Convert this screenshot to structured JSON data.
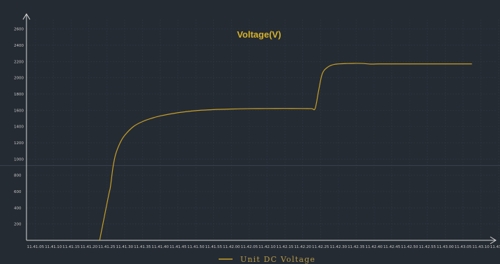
{
  "colors": {
    "background": "#252b33",
    "line": "#c9a227",
    "title": "#d6b22a",
    "legend": "#b59a45",
    "axis": "#d8d8d8",
    "grid": "#313844",
    "tick_label": "#c8c8c8",
    "reference_line": "#3a414c"
  },
  "chart_data": {
    "type": "line",
    "title": "Voltage(V)",
    "xlabel": "",
    "ylabel": "",
    "x_ticks": [
      "11.41.05",
      "11.41.10",
      "11.41.15",
      "11.41.20",
      "11.41.25",
      "11.41.30",
      "11.41.35",
      "11.41.40",
      "11.41.45",
      "11.41.50",
      "11.41.55",
      "11.42.00",
      "11.42.05",
      "11.42.10",
      "11.42.15",
      "11.42.20",
      "11.42.25",
      "11.42.30",
      "11.42.35",
      "11.42.40",
      "11.42.45",
      "11.42.50",
      "11.42.55",
      "11.43.00",
      "11.43.05",
      "11.43.10",
      "11.43.15",
      "11.43.25"
    ],
    "y_ticks": [
      200,
      400,
      600,
      800,
      1000,
      1200,
      1400,
      1600,
      1800,
      2000,
      2200,
      2400,
      2600
    ],
    "ylim": [
      0,
      2700
    ],
    "reference_y": 920,
    "grid": true,
    "legend_position": "bottom-center",
    "series": [
      {
        "name": "Unit DC Voltage",
        "x_unit": "tick index",
        "points": [
          [
            3.6,
            0
          ],
          [
            4.1,
            550
          ],
          [
            4.2,
            650
          ],
          [
            4.35,
            900
          ],
          [
            4.5,
            1060
          ],
          [
            4.75,
            1200
          ],
          [
            5.0,
            1290
          ],
          [
            5.5,
            1400
          ],
          [
            6.0,
            1460
          ],
          [
            6.5,
            1500
          ],
          [
            7.0,
            1530
          ],
          [
            8.0,
            1570
          ],
          [
            9.0,
            1595
          ],
          [
            10.0,
            1608
          ],
          [
            11.0,
            1615
          ],
          [
            12.0,
            1620
          ],
          [
            13.0,
            1621
          ],
          [
            14.0,
            1622
          ],
          [
            15.0,
            1621
          ],
          [
            15.5,
            1620
          ],
          [
            15.7,
            1624
          ],
          [
            15.9,
            1850
          ],
          [
            16.1,
            2050
          ],
          [
            16.4,
            2130
          ],
          [
            16.8,
            2165
          ],
          [
            17.5,
            2175
          ],
          [
            18.3,
            2176
          ],
          [
            18.8,
            2168
          ],
          [
            19.3,
            2170
          ],
          [
            20.0,
            2170
          ],
          [
            21.0,
            2170
          ],
          [
            22.0,
            2170
          ],
          [
            23.0,
            2170
          ],
          [
            24.5,
            2170
          ]
        ]
      }
    ]
  }
}
